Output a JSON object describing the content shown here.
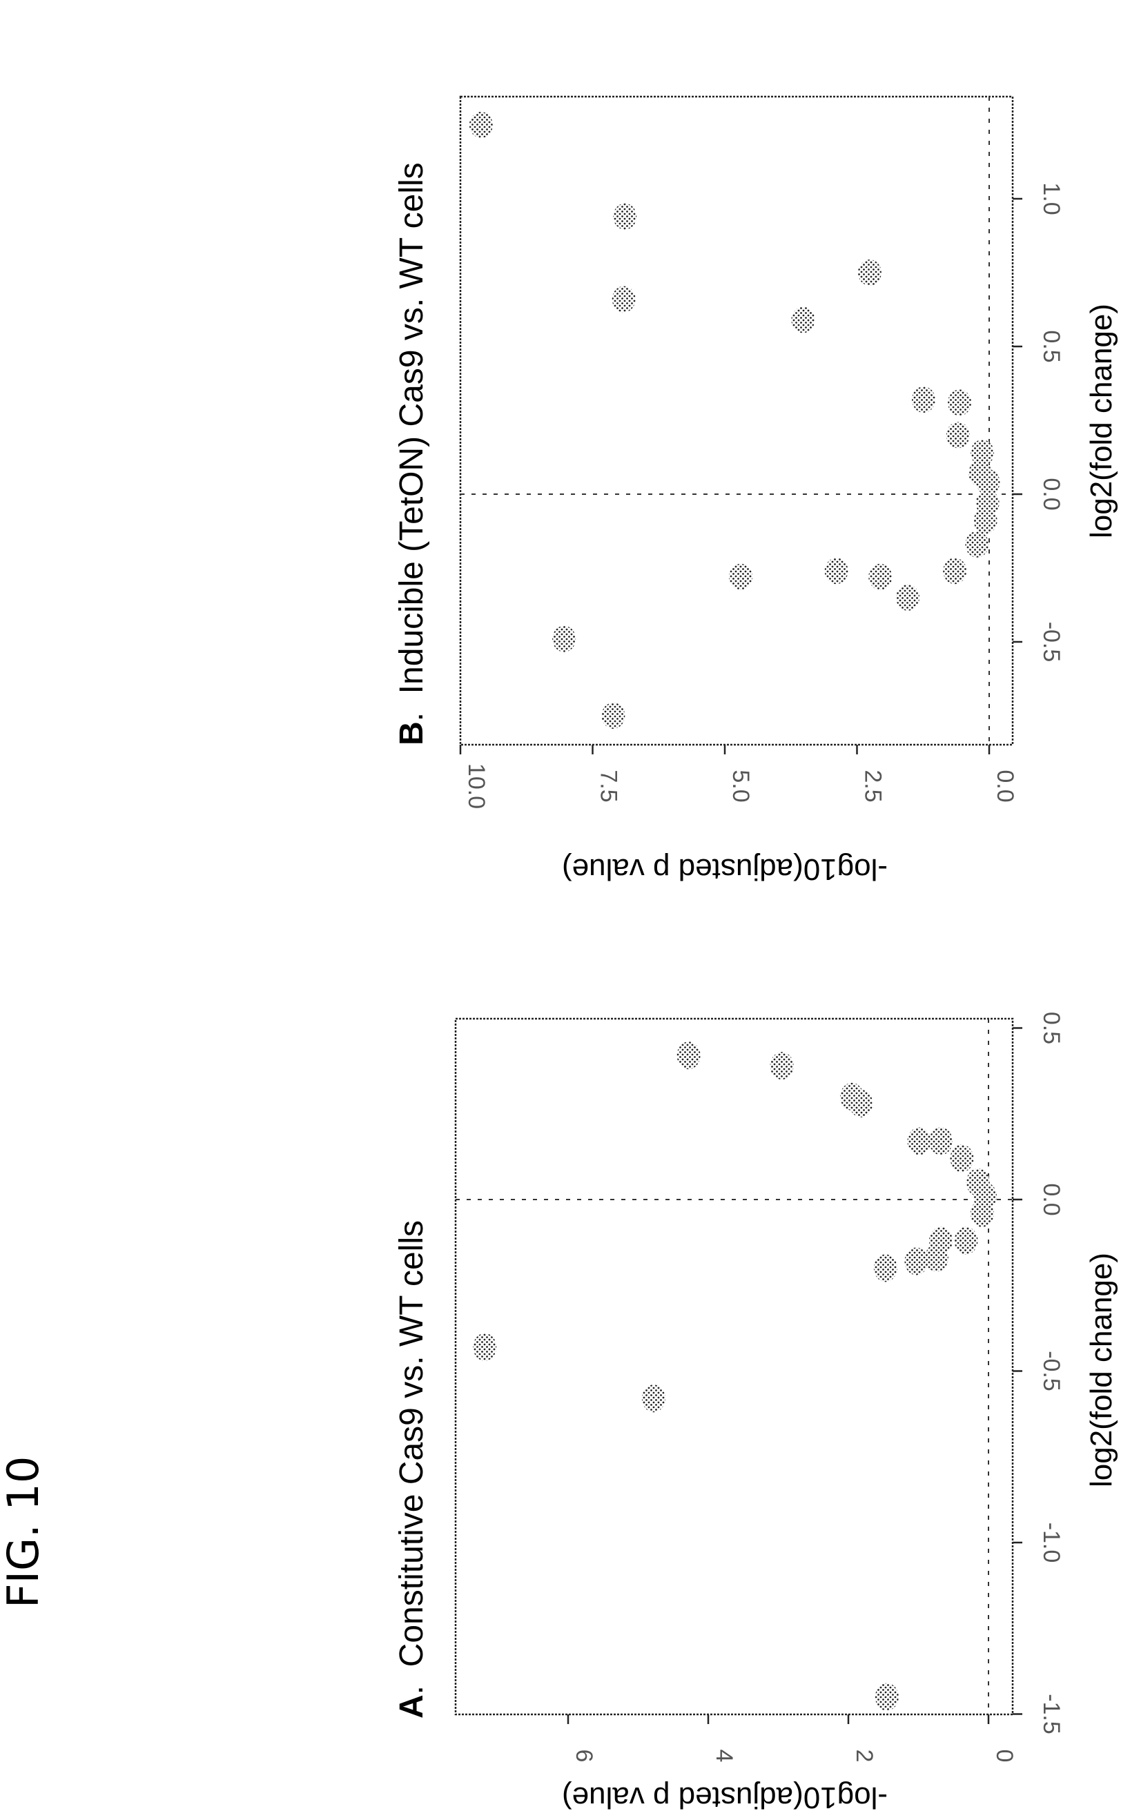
{
  "figure": {
    "label": "FIG. 10"
  },
  "chart_data": [
    {
      "type": "scatter",
      "panel": "A",
      "title": "Constitutive Cas9 vs. WT cells",
      "xlabel": "log2(fold change)",
      "ylabel": "-log10(adjusted p value)",
      "xlim": [
        -1.5,
        0.5
      ],
      "ylim": [
        0,
        7.4
      ],
      "xticks": [
        -1.5,
        -1.0,
        -0.5,
        0.0,
        0.5
      ],
      "xtick_labels": [
        "-1.5",
        "-1.0",
        "-0.5",
        "0.0",
        "0.5"
      ],
      "yticks": [
        0,
        2,
        4,
        6
      ],
      "ytick_labels": [
        "0",
        "2",
        "4",
        "6"
      ],
      "reference_lines": {
        "x": 0.0,
        "y": 0.0
      },
      "grid": false,
      "points": [
        {
          "x": -0.43,
          "y": 7.19
        },
        {
          "x": -0.58,
          "y": 4.78
        },
        {
          "x": 0.42,
          "y": 4.28
        },
        {
          "x": 0.39,
          "y": 2.95
        },
        {
          "x": 0.28,
          "y": 1.82
        },
        {
          "x": 0.3,
          "y": 1.95
        },
        {
          "x": 0.17,
          "y": 0.99
        },
        {
          "x": 0.17,
          "y": 0.68
        },
        {
          "x": 0.12,
          "y": 0.38
        },
        {
          "x": 0.05,
          "y": 0.15
        },
        {
          "x": 0.01,
          "y": 0.05
        },
        {
          "x": -0.04,
          "y": 0.09
        },
        {
          "x": -0.12,
          "y": 0.32
        },
        {
          "x": -0.12,
          "y": 0.68
        },
        {
          "x": -0.17,
          "y": 0.74
        },
        {
          "x": -0.18,
          "y": 1.03
        },
        {
          "x": -0.2,
          "y": 1.47
        },
        {
          "x": -1.45,
          "y": 1.45
        }
      ]
    },
    {
      "type": "scatter",
      "panel": "B",
      "title": "Inducible (TetON) Cas9 vs. WT cells",
      "xlabel": "log2(fold change)",
      "ylabel": "-log10(adjusted p value)",
      "xlim": [
        -0.8,
        1.3
      ],
      "ylim": [
        0,
        10.0
      ],
      "xticks": [
        -0.5,
        0.0,
        0.5,
        1.0
      ],
      "xtick_labels": [
        "-0.5",
        "0.0",
        "0.5",
        "1.0"
      ],
      "yticks": [
        0.0,
        2.5,
        5.0,
        7.5,
        10.0
      ],
      "ytick_labels": [
        "0.0",
        "2.5",
        "5.0",
        "7.5",
        "10.0"
      ],
      "reference_lines": {
        "x": 0.0,
        "y": 0.0
      },
      "grid": false,
      "points": [
        {
          "x": 1.25,
          "y": 9.61
        },
        {
          "x": 0.94,
          "y": 6.89
        },
        {
          "x": 0.66,
          "y": 6.91
        },
        {
          "x": 0.75,
          "y": 2.26
        },
        {
          "x": 0.59,
          "y": 3.52
        },
        {
          "x": 0.32,
          "y": 1.24
        },
        {
          "x": 0.31,
          "y": 0.56
        },
        {
          "x": 0.2,
          "y": 0.59
        },
        {
          "x": 0.14,
          "y": 0.13
        },
        {
          "x": 0.07,
          "y": 0.17
        },
        {
          "x": 0.04,
          "y": 0.02
        },
        {
          "x": -0.03,
          "y": 0.03
        },
        {
          "x": -0.09,
          "y": 0.07
        },
        {
          "x": -0.17,
          "y": 0.23
        },
        {
          "x": -0.26,
          "y": 0.65
        },
        {
          "x": -0.26,
          "y": 2.89
        },
        {
          "x": -0.28,
          "y": 2.06
        },
        {
          "x": -0.35,
          "y": 1.54
        },
        {
          "x": -0.28,
          "y": 4.7
        },
        {
          "x": -0.49,
          "y": 8.04
        },
        {
          "x": -0.75,
          "y": 7.11
        }
      ]
    }
  ]
}
